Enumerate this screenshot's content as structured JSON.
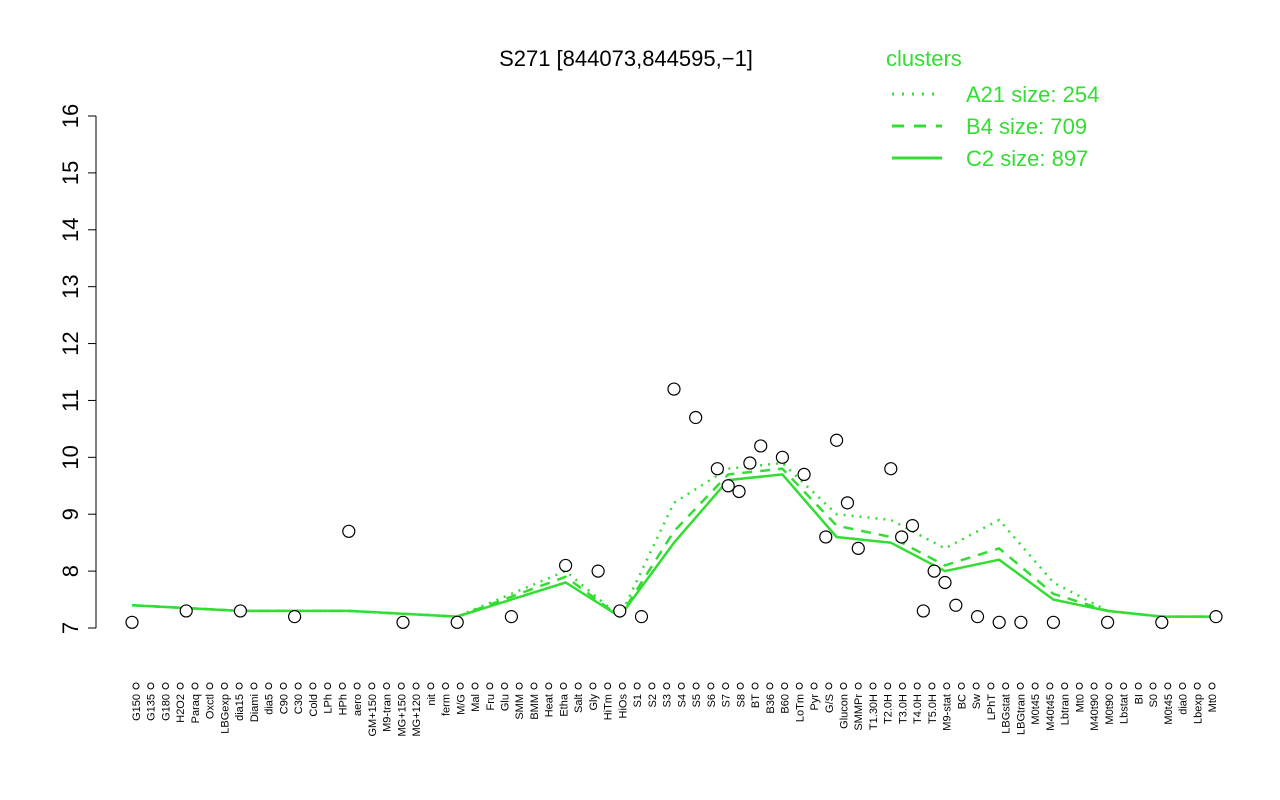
{
  "chart_data": {
    "type": "line",
    "title": "S271 [844073,844595,−1]",
    "xlabel": "",
    "ylabel": "",
    "ylim": [
      7,
      16
    ],
    "y_ticks": [
      7,
      8,
      9,
      10,
      11,
      12,
      13,
      14,
      15,
      16
    ],
    "grid": false,
    "legend": {
      "title": "clusters",
      "placement": "top-right",
      "entries": [
        {
          "label": "A21 size: 254",
          "style": "dotted"
        },
        {
          "label": "B4 size: 709",
          "style": "dashed"
        },
        {
          "label": "C2 size: 897",
          "style": "solid"
        }
      ]
    },
    "x_tick_labels": [
      "G150",
      "G135",
      "G180",
      "H2O2",
      "Paraq",
      "Oxctl",
      "LBGexp",
      "dia15",
      "Diami",
      "dia5",
      "C90",
      "C30",
      "Cold",
      "LPh",
      "HPh",
      "aero",
      "GM+150",
      "M9-tran",
      "MG+150",
      "MG+120",
      "nit",
      "ferm",
      "M/G",
      "Mal",
      "Fru",
      "Glu",
      "SMM",
      "BMM",
      "Heat",
      "Etha",
      "Salt",
      "Gly",
      "HiTm",
      "HiOs",
      "S1",
      "S2",
      "S3",
      "S4",
      "S5",
      "S6",
      "S7",
      "S8",
      "BT",
      "B36",
      "B60",
      "LoTm",
      "Pyr",
      "G/S",
      "Glucon",
      "SMMPr",
      "T1.30H",
      "T2.0H",
      "T3.0H",
      "T4.0H",
      "T5.0H",
      "M9-stat",
      "BC",
      "Sw",
      "LPhT",
      "LBGstat",
      "LBGtran",
      "M0t45",
      "M40t45",
      "Lbtran",
      "Mt0",
      "M40t90",
      "M0t90",
      "Lbstat",
      "BI",
      "S0",
      "M0t45",
      "dia0",
      "Lbexp",
      "Mt0"
    ],
    "series": [
      {
        "name": "A21 size: 254",
        "style": "dotted",
        "x": [
          0,
          10,
          20,
          30,
          40,
          45,
          50,
          55,
          60,
          65,
          70,
          75,
          80,
          85,
          90,
          95,
          100
        ],
        "y": [
          7.4,
          7.3,
          7.3,
          7.2,
          8.0,
          7.2,
          9.2,
          9.8,
          9.9,
          9.0,
          8.9,
          8.4,
          8.9,
          7.8,
          7.3,
          7.2,
          7.2
        ]
      },
      {
        "name": "B4 size: 709",
        "style": "dashed",
        "x": [
          0,
          10,
          20,
          30,
          40,
          45,
          50,
          55,
          60,
          65,
          70,
          75,
          80,
          85,
          90,
          95,
          100
        ],
        "y": [
          7.4,
          7.3,
          7.3,
          7.2,
          7.9,
          7.2,
          8.7,
          9.7,
          9.8,
          8.8,
          8.6,
          8.1,
          8.4,
          7.6,
          7.3,
          7.2,
          7.2
        ]
      },
      {
        "name": "C2 size: 897",
        "style": "solid",
        "x": [
          0,
          10,
          20,
          30,
          40,
          45,
          50,
          55,
          60,
          65,
          70,
          75,
          80,
          85,
          90,
          95,
          100
        ],
        "y": [
          7.4,
          7.3,
          7.3,
          7.2,
          7.8,
          7.2,
          8.5,
          9.6,
          9.7,
          8.6,
          8.5,
          8.0,
          8.2,
          7.5,
          7.3,
          7.2,
          7.2
        ]
      },
      {
        "name": "",
        "style": "points",
        "x": [
          0,
          5,
          10,
          15,
          20,
          25,
          30,
          35,
          40,
          43,
          45,
          47,
          50,
          52,
          54,
          55,
          56,
          57,
          58,
          60,
          62,
          64,
          65,
          66,
          67,
          70,
          71,
          72,
          73,
          74,
          75,
          76,
          78,
          80,
          82,
          85,
          90,
          95,
          100
        ],
        "y": [
          7.1,
          7.3,
          7.3,
          7.2,
          8.7,
          7.1,
          7.1,
          7.2,
          8.1,
          8.0,
          7.3,
          7.2,
          11.2,
          10.7,
          9.8,
          9.5,
          9.4,
          9.9,
          10.2,
          10.0,
          9.7,
          8.6,
          10.3,
          9.2,
          8.4,
          9.8,
          8.6,
          8.8,
          7.3,
          8.0,
          7.8,
          7.4,
          7.2,
          7.1,
          7.1,
          7.1,
          7.1,
          7.1,
          7.2
        ]
      }
    ],
    "colors": {
      "lines": "#33dd33",
      "legend": "#33dd33",
      "points_fill": "#ffffff",
      "points_stroke": "#000000",
      "axis": "#000000"
    }
  }
}
